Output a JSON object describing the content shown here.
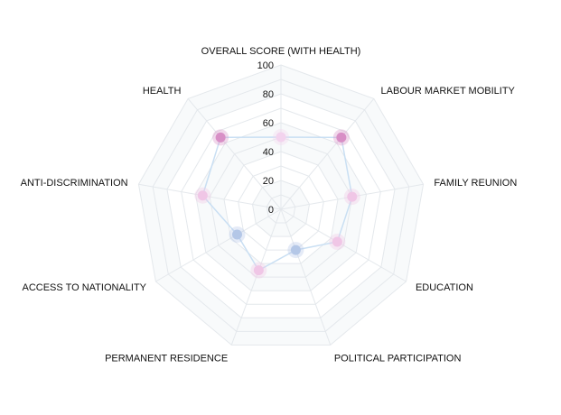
{
  "chart_data": {
    "type": "radar",
    "title": "",
    "axes": [
      "OVERALL SCORE (WITH HEALTH)",
      "LABOUR MARKET MOBILITY",
      "FAMILY REUNION",
      "EDUCATION",
      "POLITICAL PARTICIPATION",
      "PERMANENT RESIDENCE",
      "ACCESS TO NATIONALITY",
      "ANTI-DISCRIMINATION",
      "HEALTH"
    ],
    "rlim": [
      0,
      100
    ],
    "ticks": [
      "0",
      "20",
      "40",
      "60",
      "80",
      "100"
    ],
    "tick_values": [
      0,
      20,
      40,
      60,
      80,
      100
    ],
    "grid": true,
    "series": [
      {
        "values": [
          50,
          65,
          50,
          45,
          30,
          45,
          35,
          55,
          65
        ],
        "point_colors": [
          "#f3d3ee",
          "#d88fc6",
          "#f0c6e6",
          "#f0c6e6",
          "#b4c7e7",
          "#f0c6e6",
          "#b4c7e7",
          "#f0c6e6",
          "#d88fc6"
        ]
      }
    ],
    "colors": {
      "line": "#c9dff3",
      "grid": "#e4e8ec",
      "band": "#f8fafb"
    }
  }
}
